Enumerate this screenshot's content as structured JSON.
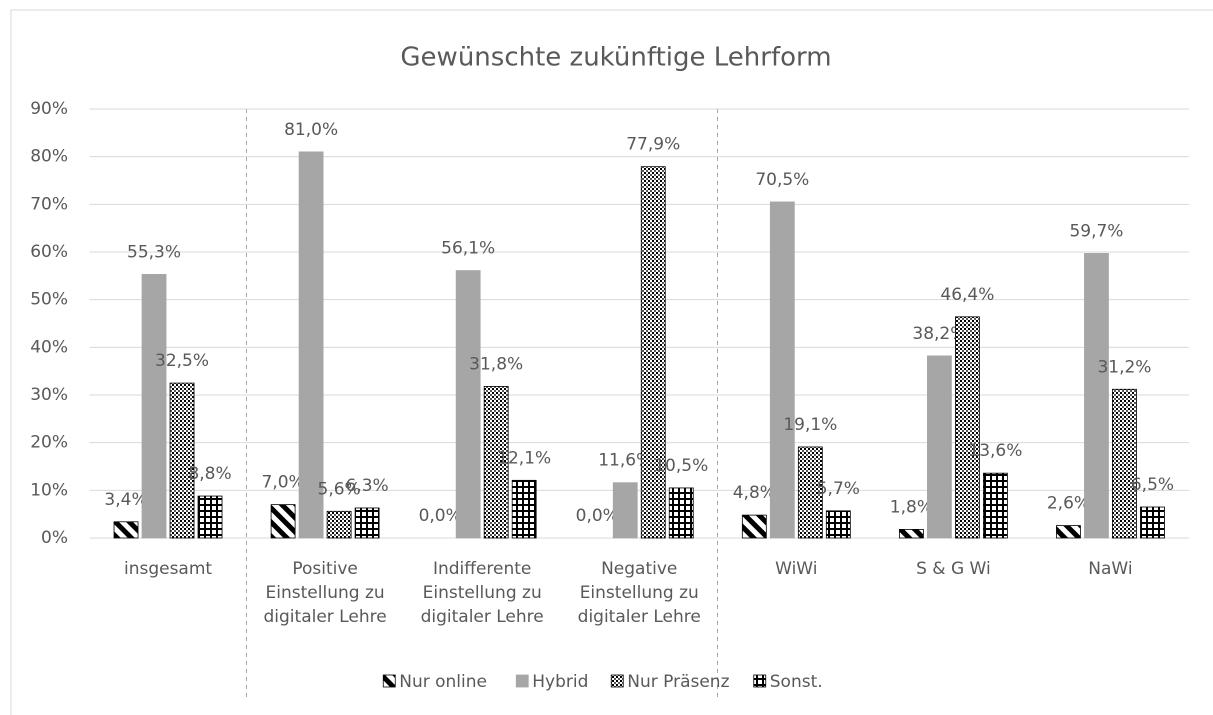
{
  "chart_data": {
    "type": "bar",
    "title": "Gewünschte zukünftige Lehrform",
    "categories": [
      "insgesamt",
      "Positive Einstellung zu digitaler Lehre",
      "Indifferente Einstellung zu digitaler Lehre",
      "Negative Einstellung zu digitaler Lehre",
      "WiWi",
      "S & G Wi",
      "NaWi"
    ],
    "series": [
      {
        "name": "Nur online",
        "color": "#000000",
        "values": [
          3.4,
          7.0,
          0.0,
          0.0,
          4.8,
          1.8,
          2.6
        ],
        "value_labels": [
          "3,4%",
          "7,0%",
          "0,0%",
          "0,0%",
          "4,8%",
          "1,8%",
          "2,6%"
        ]
      },
      {
        "name": "Hybrid",
        "color": "#a6a6a6",
        "values": [
          55.3,
          81.0,
          56.1,
          11.6,
          70.5,
          38.2,
          59.7
        ],
        "value_labels": [
          "55,3%",
          "81,0%",
          "56,1%",
          "11,6%",
          "70,5%",
          "38,2%",
          "59,7%"
        ]
      },
      {
        "name": "Nur Präsenz",
        "color": "#000000",
        "values": [
          32.5,
          5.6,
          31.8,
          77.9,
          19.1,
          46.4,
          31.2
        ],
        "value_labels": [
          "32,5%",
          "5,6%",
          "31,8%",
          "77,9%",
          "19,1%",
          "46,4%",
          "31,2%"
        ]
      },
      {
        "name": "Sonst.",
        "color": "#000000",
        "values": [
          8.8,
          6.3,
          12.1,
          10.5,
          5.7,
          13.6,
          6.5
        ],
        "value_labels": [
          "8,8%",
          "6,3%",
          "12,1%",
          "10,5%",
          "5,7%",
          "13,6%",
          "6,5%"
        ]
      }
    ],
    "ylim": [
      0,
      90
    ],
    "yticks": [
      {
        "value": 0,
        "label": "0%"
      },
      {
        "value": 10,
        "label": "10%"
      },
      {
        "value": 20,
        "label": "20%"
      },
      {
        "value": 30,
        "label": "30%"
      },
      {
        "value": 40,
        "label": "40%"
      },
      {
        "value": 50,
        "label": "50%"
      },
      {
        "value": 60,
        "label": "60%"
      },
      {
        "value": 70,
        "label": "70%"
      },
      {
        "value": 80,
        "label": "80%"
      },
      {
        "value": 90,
        "label": "90%"
      }
    ],
    "grid": true,
    "legend": "bottom"
  }
}
